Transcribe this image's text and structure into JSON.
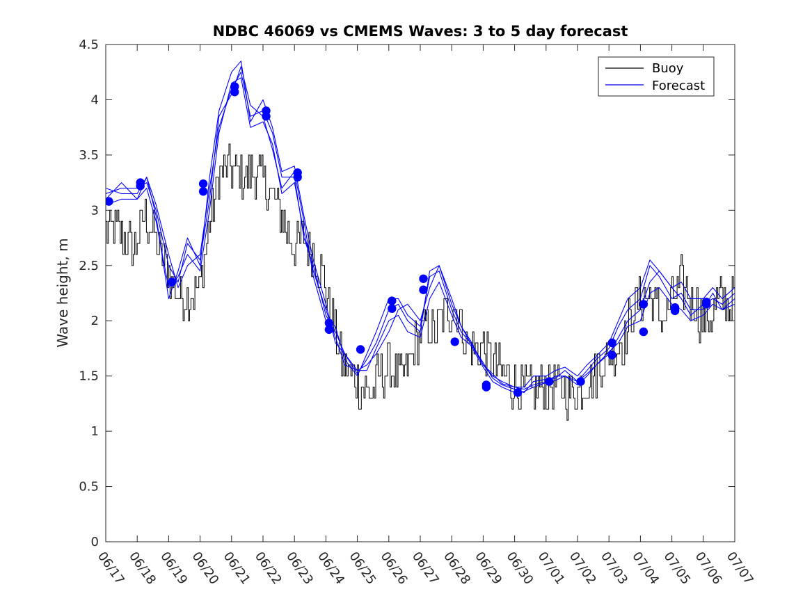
{
  "chart_data": {
    "type": "line",
    "title": "NDBC 46069 vs CMEMS Waves: 3 to 5 day forecast",
    "xlabel": "",
    "ylabel": "Wave height, m",
    "x_ticks": [
      "06/17",
      "06/18",
      "06/19",
      "06/20",
      "06/21",
      "06/22",
      "06/23",
      "06/24",
      "06/25",
      "06/26",
      "06/27",
      "06/28",
      "06/29",
      "06/30",
      "07/01",
      "07/02",
      "07/03",
      "07/04",
      "07/05",
      "07/06",
      "07/07"
    ],
    "y_ticks": [
      "0",
      "0.5",
      "1",
      "1.5",
      "2",
      "2.5",
      "3",
      "3.5",
      "4",
      "4.5"
    ],
    "xlim_days": [
      0,
      20
    ],
    "ylim": [
      0,
      4.5
    ],
    "grid": false,
    "legend": {
      "placement": "top-right",
      "entries": [
        "Buoy",
        "Forecast"
      ]
    },
    "colors": {
      "buoy": "#000000",
      "forecast": "#0000ff",
      "axes": "#262626"
    },
    "buoy_anchor": [
      [
        0.0,
        2.8
      ],
      [
        0.3,
        2.85
      ],
      [
        0.6,
        2.75
      ],
      [
        0.9,
        2.65
      ],
      [
        1.2,
        2.95
      ],
      [
        1.5,
        2.8
      ],
      [
        1.8,
        2.55
      ],
      [
        2.1,
        2.35
      ],
      [
        2.4,
        2.2
      ],
      [
        2.7,
        2.25
      ],
      [
        3.0,
        2.3
      ],
      [
        3.3,
        2.9
      ],
      [
        3.6,
        3.3
      ],
      [
        3.9,
        3.4
      ],
      [
        4.2,
        3.35
      ],
      [
        4.5,
        3.3
      ],
      [
        4.8,
        3.35
      ],
      [
        5.1,
        3.2
      ],
      [
        5.4,
        3.05
      ],
      [
        5.7,
        2.85
      ],
      [
        6.0,
        2.7
      ],
      [
        6.3,
        2.75
      ],
      [
        6.6,
        2.6
      ],
      [
        6.9,
        2.4
      ],
      [
        7.2,
        2.0
      ],
      [
        7.5,
        1.65
      ],
      [
        7.8,
        1.5
      ],
      [
        8.1,
        1.4
      ],
      [
        8.4,
        1.35
      ],
      [
        8.7,
        1.5
      ],
      [
        9.0,
        1.6
      ],
      [
        9.3,
        1.45
      ],
      [
        9.6,
        1.55
      ],
      [
        9.9,
        1.85
      ],
      [
        10.2,
        1.95
      ],
      [
        10.5,
        1.9
      ],
      [
        10.8,
        2.05
      ],
      [
        11.1,
        2.15
      ],
      [
        11.4,
        1.85
      ],
      [
        11.7,
        1.7
      ],
      [
        12.0,
        1.75
      ],
      [
        12.3,
        1.65
      ],
      [
        12.6,
        1.5
      ],
      [
        12.9,
        1.45
      ],
      [
        13.2,
        1.4
      ],
      [
        13.5,
        1.35
      ],
      [
        13.8,
        1.4
      ],
      [
        14.1,
        1.4
      ],
      [
        14.4,
        1.4
      ],
      [
        14.7,
        1.35
      ],
      [
        15.0,
        1.4
      ],
      [
        15.3,
        1.45
      ],
      [
        15.6,
        1.55
      ],
      [
        15.9,
        1.65
      ],
      [
        16.2,
        1.75
      ],
      [
        16.5,
        1.85
      ],
      [
        16.8,
        2.1
      ],
      [
        17.1,
        2.25
      ],
      [
        17.4,
        2.2
      ],
      [
        17.7,
        2.0
      ],
      [
        18.0,
        2.2
      ],
      [
        18.3,
        2.35
      ],
      [
        18.6,
        2.2
      ],
      [
        18.9,
        2.05
      ],
      [
        19.2,
        2.0
      ],
      [
        19.5,
        2.2
      ],
      [
        19.8,
        2.15
      ],
      [
        20.0,
        2.3
      ]
    ],
    "forecast_series": [
      {
        "x": [
          0.0,
          0.5,
          1.0,
          1.3,
          1.6,
          2.0,
          2.3,
          2.6,
          3.0,
          3.3,
          3.6,
          4.0,
          4.3,
          4.6,
          5.0,
          5.3,
          5.6,
          6.0,
          6.3,
          6.6,
          7.0,
          7.3,
          7.6,
          8.0,
          8.3,
          8.6,
          9.0,
          9.3,
          9.6,
          10.0,
          10.3,
          10.6,
          11.0,
          11.3,
          11.6,
          12.0,
          12.3,
          12.6,
          13.0,
          13.3,
          13.6,
          14.0,
          14.3,
          14.6,
          15.0,
          15.3,
          15.6,
          16.0,
          16.3,
          16.6,
          17.0,
          17.3,
          17.6,
          18.0,
          18.3,
          18.6,
          19.0,
          19.3,
          19.6,
          20.0
        ],
        "y": [
          3.1,
          3.25,
          3.1,
          3.3,
          3.05,
          2.6,
          2.3,
          2.5,
          2.6,
          3.2,
          3.75,
          4.1,
          4.25,
          3.85,
          3.9,
          3.7,
          3.3,
          3.3,
          2.75,
          2.5,
          2.05,
          1.9,
          1.7,
          1.55,
          1.6,
          1.7,
          1.9,
          2.1,
          2.15,
          2.0,
          2.3,
          2.5,
          2.15,
          1.95,
          1.8,
          1.6,
          1.5,
          1.45,
          1.4,
          1.38,
          1.42,
          1.45,
          1.5,
          1.5,
          1.45,
          1.52,
          1.6,
          1.7,
          1.85,
          2.0,
          2.1,
          2.35,
          2.45,
          2.3,
          2.2,
          2.05,
          2.15,
          2.2,
          2.15,
          2.25
        ]
      },
      {
        "x": [
          0.0,
          0.5,
          1.0,
          1.3,
          1.6,
          2.0,
          2.3,
          2.6,
          3.0,
          3.3,
          3.6,
          4.0,
          4.3,
          4.6,
          5.0,
          5.3,
          5.6,
          6.0,
          6.3,
          6.6,
          7.0,
          7.3,
          7.6,
          8.0,
          8.3,
          8.6,
          9.0,
          9.3,
          9.6,
          10.0,
          10.3,
          10.6,
          11.0,
          11.3,
          11.6,
          12.0,
          12.3,
          12.6,
          13.0,
          13.3,
          13.6,
          14.0,
          14.3,
          14.6,
          15.0,
          15.3,
          15.6,
          16.0,
          16.3,
          16.6,
          17.0,
          17.3,
          17.6,
          18.0,
          18.3,
          18.6,
          19.0,
          19.3,
          19.6,
          20.0
        ],
        "y": [
          3.15,
          3.2,
          3.2,
          3.25,
          3.0,
          2.5,
          2.35,
          2.7,
          2.55,
          3.1,
          3.85,
          4.05,
          4.3,
          3.95,
          3.85,
          3.55,
          3.2,
          3.35,
          2.9,
          2.4,
          2.0,
          1.95,
          1.65,
          1.5,
          1.7,
          1.9,
          2.2,
          2.2,
          2.05,
          1.95,
          2.4,
          2.45,
          2.1,
          1.9,
          1.8,
          1.62,
          1.48,
          1.42,
          1.38,
          1.35,
          1.45,
          1.47,
          1.48,
          1.55,
          1.45,
          1.55,
          1.65,
          1.75,
          1.95,
          2.1,
          2.2,
          2.5,
          2.4,
          2.2,
          2.25,
          2.1,
          2.1,
          2.25,
          2.1,
          2.2
        ]
      },
      {
        "x": [
          0.0,
          0.5,
          1.0,
          1.3,
          1.6,
          2.0,
          2.3,
          2.6,
          3.0,
          3.3,
          3.6,
          4.0,
          4.3,
          4.6,
          5.0,
          5.3,
          5.6,
          6.0,
          6.3,
          6.6,
          7.0,
          7.3,
          7.6,
          8.0,
          8.3,
          8.6,
          9.0,
          9.3,
          9.6,
          10.0,
          10.3,
          10.6,
          11.0,
          11.3,
          11.6,
          12.0,
          12.3,
          12.6,
          13.0,
          13.3,
          13.6,
          14.0,
          14.3,
          14.6,
          15.0,
          15.3,
          15.6,
          16.0,
          16.3,
          16.6,
          17.0,
          17.3,
          17.6,
          18.0,
          18.3,
          18.6,
          19.0,
          19.3,
          19.6,
          20.0
        ],
        "y": [
          3.05,
          3.1,
          3.1,
          3.2,
          2.9,
          2.3,
          2.4,
          2.6,
          2.45,
          3.0,
          3.7,
          4.15,
          4.2,
          3.75,
          3.8,
          3.6,
          3.15,
          3.25,
          2.8,
          2.45,
          2.1,
          1.85,
          1.6,
          1.55,
          1.55,
          1.75,
          2.0,
          2.05,
          1.9,
          1.85,
          2.2,
          2.35,
          2.05,
          1.85,
          1.78,
          1.58,
          1.45,
          1.4,
          1.35,
          1.36,
          1.4,
          1.44,
          1.46,
          1.5,
          1.42,
          1.5,
          1.6,
          1.72,
          1.8,
          1.95,
          2.0,
          2.25,
          2.3,
          2.15,
          2.1,
          2.0,
          2.05,
          2.15,
          2.1,
          2.15
        ]
      },
      {
        "x": [
          0.0,
          0.5,
          1.0,
          1.3,
          1.6,
          2.0,
          2.3,
          2.6,
          3.0,
          3.3,
          3.6,
          4.0,
          4.3,
          4.6,
          5.0,
          5.3,
          5.6,
          6.0,
          6.3,
          6.6,
          7.0,
          7.3,
          7.6,
          8.0,
          8.3,
          8.6,
          9.0,
          9.3,
          9.6,
          10.0,
          10.3,
          10.6,
          11.0,
          11.3,
          11.6,
          12.0,
          12.3,
          12.6,
          13.0,
          13.3,
          13.6,
          14.0,
          14.3,
          14.6,
          15.0,
          15.3,
          15.6,
          16.0,
          16.3,
          16.6,
          17.0,
          17.3,
          17.6,
          18.0,
          18.3,
          18.6,
          19.0,
          19.3,
          19.6,
          20.0
        ],
        "y": [
          3.2,
          3.15,
          3.15,
          3.3,
          2.95,
          2.2,
          2.45,
          2.75,
          2.5,
          3.3,
          3.9,
          4.25,
          4.35,
          3.8,
          4.0,
          3.75,
          3.35,
          3.4,
          2.95,
          2.55,
          2.15,
          1.8,
          1.7,
          1.52,
          1.65,
          1.8,
          2.1,
          2.15,
          2.0,
          1.9,
          2.45,
          2.5,
          2.2,
          1.95,
          1.82,
          1.6,
          1.52,
          1.43,
          1.4,
          1.4,
          1.5,
          1.5,
          1.55,
          1.58,
          1.5,
          1.6,
          1.68,
          1.8,
          2.0,
          2.2,
          2.3,
          2.55,
          2.45,
          2.3,
          2.35,
          2.2,
          2.2,
          2.3,
          2.2,
          2.3
        ]
      }
    ],
    "forecast_markers": [
      [
        0.1,
        3.08
      ],
      [
        1.1,
        3.22
      ],
      [
        1.1,
        3.25
      ],
      [
        2.1,
        2.35
      ],
      [
        3.1,
        3.17
      ],
      [
        3.1,
        3.24
      ],
      [
        4.1,
        4.07
      ],
      [
        4.1,
        4.12
      ],
      [
        5.1,
        3.85
      ],
      [
        5.1,
        3.9
      ],
      [
        6.1,
        3.3
      ],
      [
        6.1,
        3.34
      ],
      [
        7.1,
        1.92
      ],
      [
        7.1,
        1.98
      ],
      [
        8.1,
        1.74
      ],
      [
        9.1,
        2.11
      ],
      [
        9.1,
        2.18
      ],
      [
        10.1,
        2.28
      ],
      [
        10.1,
        2.38
      ],
      [
        11.1,
        1.81
      ],
      [
        12.1,
        1.4
      ],
      [
        12.1,
        1.42
      ],
      [
        13.1,
        1.35
      ],
      [
        14.1,
        1.45
      ],
      [
        15.1,
        1.45
      ],
      [
        16.1,
        1.69
      ],
      [
        16.1,
        1.8
      ],
      [
        17.1,
        1.9
      ],
      [
        17.1,
        2.15
      ],
      [
        18.1,
        2.09
      ],
      [
        18.1,
        2.12
      ],
      [
        19.1,
        2.15
      ],
      [
        19.1,
        2.17
      ]
    ]
  }
}
